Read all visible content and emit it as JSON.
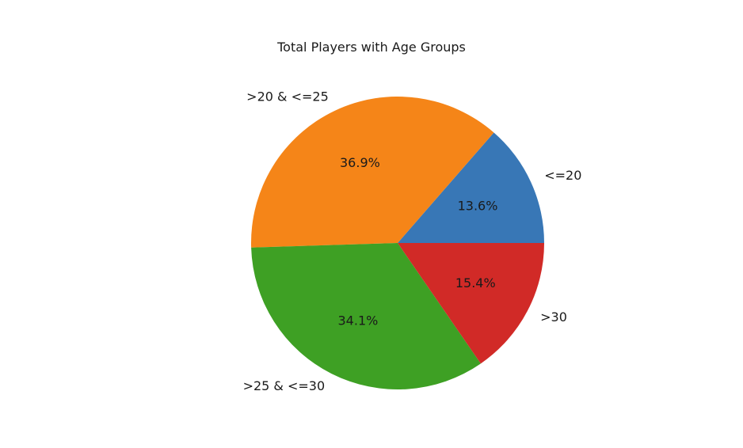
{
  "chart_data": {
    "type": "pie",
    "title": "Total Players with Age Groups",
    "categories": [
      "<=20",
      ">20 & <=25",
      ">25 & <=30",
      ">30"
    ],
    "values": [
      13.6,
      36.9,
      34.1,
      15.4
    ],
    "value_labels": [
      "13.6%",
      "36.9%",
      "34.1%",
      "15.4%"
    ],
    "colors": [
      "#3877b6",
      "#f58518",
      "#3ea024",
      "#d12a27"
    ],
    "start_angle_deg": 0,
    "direction": "counterclockwise",
    "legend": "none"
  }
}
